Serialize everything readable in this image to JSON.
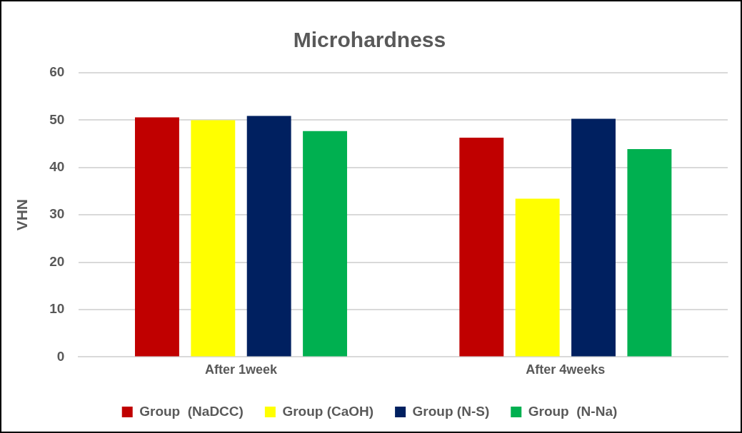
{
  "chart_data": {
    "type": "bar",
    "title": "Microhardness",
    "ylabel": "VHN",
    "categories": [
      "After 1week",
      "After 4weeks"
    ],
    "series": [
      {
        "name": "Group  (NaDCC)",
        "color": "#c00000",
        "values": [
          50.6,
          46.3
        ]
      },
      {
        "name": "Group (CaOH)",
        "color": "#ffff00",
        "values": [
          50.0,
          33.4
        ]
      },
      {
        "name": "Group (N-S)",
        "color": "#002060",
        "values": [
          50.9,
          50.3
        ]
      },
      {
        "name": "Group  (N-Na)",
        "color": "#00b050",
        "values": [
          47.7,
          43.9
        ]
      }
    ],
    "ylim": [
      0,
      60
    ],
    "yticks": [
      0,
      10,
      20,
      30,
      40,
      50,
      60
    ],
    "grid": "y",
    "legend": "bottom"
  }
}
